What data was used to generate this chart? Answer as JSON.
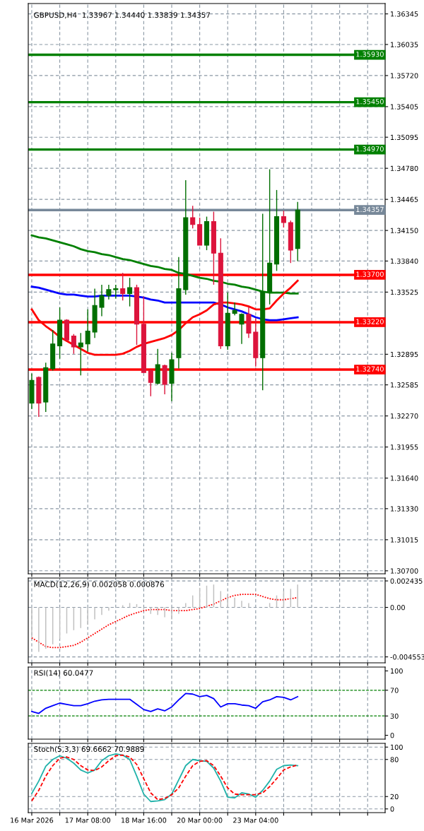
{
  "chart_data": [
    {
      "type": "candlestick",
      "title": "GBPUSD,H4  1.33967 1.34440 1.33839 1.34357",
      "categories": [
        null,
        null,
        null,
        null,
        null,
        null,
        null,
        null,
        null,
        null,
        null,
        null,
        null,
        null,
        null,
        null,
        null,
        null,
        null,
        null,
        null,
        null,
        null,
        null,
        null,
        null,
        null,
        null,
        null,
        null,
        null,
        null,
        null,
        null,
        null,
        null,
        null,
        null,
        null,
        null,
        null,
        null,
        null,
        null,
        null,
        null,
        null,
        null,
        null,
        null,
        null
      ],
      "ohlc": [
        [
          1.324,
          1.327,
          1.3234,
          1.3263
        ],
        [
          1.3266,
          1.3267,
          1.3226,
          1.324
        ],
        [
          1.3241,
          1.3281,
          1.3231,
          1.3276
        ],
        [
          1.3275,
          1.3314,
          1.3273,
          1.33
        ],
        [
          1.3298,
          1.3337,
          1.3285,
          1.3324
        ],
        [
          1.3324,
          1.3325,
          1.3303,
          1.3304
        ],
        [
          1.3308,
          1.331,
          1.329,
          1.3297
        ],
        [
          1.3297,
          1.3311,
          1.3268,
          1.3301
        ],
        [
          1.33,
          1.3335,
          1.3292,
          1.3313
        ],
        [
          1.3312,
          1.3356,
          1.3306,
          1.3339
        ],
        [
          1.3337,
          1.336,
          1.3328,
          1.3349
        ],
        [
          1.3349,
          1.336,
          1.3345,
          1.3355
        ],
        [
          1.3355,
          1.336,
          1.3346,
          1.3356
        ],
        [
          1.3356,
          1.3372,
          1.3344,
          1.3351
        ],
        [
          1.3351,
          1.3367,
          1.3338,
          1.3357
        ],
        [
          1.3357,
          1.336,
          1.3299,
          1.332
        ],
        [
          1.332,
          1.3348,
          1.3271,
          1.3271
        ],
        [
          1.3273,
          1.3274,
          1.3247,
          1.3261
        ],
        [
          1.326,
          1.3295,
          1.3259,
          1.3279
        ],
        [
          1.3278,
          1.3279,
          1.3249,
          1.3259
        ],
        [
          1.326,
          1.3291,
          1.3242,
          1.3284
        ],
        [
          1.3286,
          1.3388,
          1.3275,
          1.3356
        ],
        [
          1.3355,
          1.3466,
          1.335,
          1.3428
        ],
        [
          1.3428,
          1.344,
          1.3417,
          1.3421
        ],
        [
          1.3421,
          1.3428,
          1.34,
          1.34
        ],
        [
          1.34,
          1.3429,
          1.3395,
          1.3424
        ],
        [
          1.3424,
          1.3434,
          1.336,
          1.3392
        ],
        [
          1.3392,
          1.3407,
          1.3295,
          1.3298
        ],
        [
          1.3298,
          1.3352,
          1.3294,
          1.3331
        ],
        [
          1.3331,
          1.3342,
          1.3329,
          1.3334
        ],
        [
          1.332,
          1.3331,
          1.33,
          1.333
        ],
        [
          1.333,
          1.3338,
          1.3306,
          1.3311
        ],
        [
          1.3312,
          1.3326,
          1.3277,
          1.3286
        ],
        [
          1.3286,
          1.3432,
          1.3253,
          1.3353
        ],
        [
          1.3353,
          1.3477,
          1.334,
          1.3382
        ],
        [
          1.3381,
          1.3456,
          1.3374,
          1.3429
        ],
        [
          1.3429,
          1.3435,
          1.3418,
          1.3423
        ],
        [
          1.3423,
          1.3425,
          1.3382,
          1.3395
        ],
        [
          1.33967,
          1.3444,
          1.33839,
          1.34357
        ],
        null,
        null,
        null,
        null,
        null,
        null,
        null,
        null,
        null,
        null,
        null,
        null
      ],
      "colors": [
        "#006e00",
        "#dc143c",
        "#006e00",
        "#006e00",
        "#006e00",
        "#dc143c",
        "#dc143c",
        "#006e00",
        "#006e00",
        "#006e00",
        "#006e00",
        "#006e00",
        "#006e00",
        "#dc143c",
        "#006e00",
        "#dc143c",
        "#dc143c",
        "#dc143c",
        "#006e00",
        "#dc143c",
        "#006e00",
        "#006e00",
        "#006e00",
        "#dc143c",
        "#dc143c",
        "#006e00",
        "#dc143c",
        "#dc143c",
        "#006e00",
        "#006e00",
        "#006e00",
        "#dc143c",
        "#dc143c",
        "#006e00",
        "#006e00",
        "#006e00",
        "#dc143c",
        "#dc143c",
        "#006e00",
        null,
        null,
        null,
        null,
        null,
        null,
        null,
        null,
        null,
        null,
        null,
        null
      ],
      "series": [
        {
          "type": "line",
          "color": "#008000",
          "values": [
            1.341,
            1.3408,
            1.3407,
            1.3405,
            1.3403,
            1.3401,
            1.3399,
            1.3396,
            1.3394,
            1.3393,
            1.3391,
            1.339,
            1.3388,
            1.3386,
            1.3385,
            1.3383,
            1.3381,
            1.3379,
            1.3378,
            1.3376,
            1.3375,
            1.3372,
            1.3371,
            1.3369,
            1.3367,
            1.3366,
            1.3364,
            1.3363,
            1.3361,
            1.336,
            1.3358,
            1.3357,
            1.3355,
            1.3353,
            1.3352,
            1.3352,
            1.3352,
            1.3351,
            1.3351,
            null,
            null,
            null,
            null,
            null,
            null,
            null,
            null,
            null,
            null,
            null,
            null
          ]
        },
        {
          "type": "line",
          "color": "#0000ff",
          "values": [
            1.3358,
            1.3357,
            1.3355,
            1.3353,
            1.3351,
            1.335,
            1.335,
            1.3349,
            1.3348,
            1.3348,
            1.3349,
            1.3349,
            1.3349,
            1.3349,
            1.3349,
            1.3348,
            1.3347,
            1.3345,
            1.3344,
            1.3342,
            1.3342,
            1.3342,
            1.3342,
            1.3342,
            1.3342,
            1.3342,
            1.3342,
            1.334,
            1.3337,
            1.3335,
            1.3333,
            1.333,
            1.3327,
            1.3325,
            1.3324,
            1.3324,
            1.3325,
            1.3326,
            1.3327,
            null,
            null,
            null,
            null,
            null,
            null,
            null,
            null,
            null,
            null,
            null,
            null
          ]
        },
        {
          "type": "line",
          "color": "#ff0000",
          "values": [
            1.3335,
            1.3324,
            1.3318,
            1.3313,
            1.3307,
            1.3303,
            1.3299,
            1.3295,
            1.3291,
            1.3289,
            1.3289,
            1.3289,
            1.3289,
            1.329,
            1.3293,
            1.3297,
            1.33,
            1.3302,
            1.3304,
            1.3306,
            1.3309,
            1.3314,
            1.3321,
            1.3327,
            1.333,
            1.3334,
            1.334,
            1.3342,
            1.3342,
            1.3341,
            1.334,
            1.3338,
            1.3335,
            1.3335,
            1.3336,
            1.3344,
            1.3351,
            1.3357,
            1.3364,
            null,
            null,
            null,
            null,
            null,
            null,
            null,
            null,
            null,
            null,
            null,
            null
          ]
        }
      ],
      "ylim": [
        1.3067,
        1.3645
      ],
      "yticks": [
        1.36345,
        1.36035,
        {
          "value": 1.3572,
          "label": "1.35720"
        },
        1.35405,
        1.35095,
        {
          "value": 1.3478,
          "label": "1.34780"
        },
        1.34465,
        {
          "value": 1.3415,
          "label": "1.34150"
        },
        {
          "value": 1.3384,
          "label": "1.33840"
        },
        1.33525,
        1.32895,
        1.32585,
        {
          "value": 1.3227,
          "label": "1.32270"
        },
        1.31955,
        {
          "value": 1.3164,
          "label": "1.31640"
        },
        {
          "value": 1.3133,
          "label": "1.31330"
        },
        1.31015,
        {
          "value": 1.307,
          "label": "1.30700"
        }
      ],
      "ref_lines": [
        {
          "axis": "y",
          "value": 1.3593,
          "label": "1.35930",
          "color": "#008000"
        },
        {
          "axis": "y",
          "value": 1.3545,
          "label": "1.35450",
          "color": "#008000"
        },
        {
          "axis": "y",
          "value": 1.3497,
          "label": "1.34970",
          "color": "#008000"
        },
        {
          "axis": "y",
          "value": 1.34357,
          "label": "1.34357",
          "color": "#778899"
        },
        {
          "axis": "y",
          "value": 1.337,
          "label": "1.33700",
          "color": "#ff0000"
        },
        {
          "axis": "y",
          "value": 1.3322,
          "label": "1.33220",
          "color": "#ff0000"
        },
        {
          "axis": "y",
          "value": 1.3274,
          "label": "1.32740",
          "color": "#ff0000"
        }
      ],
      "grid": true,
      "tick_labels": "y"
    },
    {
      "type": "bar",
      "title": "MACD(12,26,9) 0.002058 0.000876",
      "categories": [
        null,
        null,
        null,
        null,
        null,
        null,
        null,
        null,
        null,
        null,
        null,
        null,
        null,
        null,
        null,
        null,
        null,
        null,
        null,
        null,
        null,
        null,
        null,
        null,
        null,
        null,
        null,
        null,
        null,
        null,
        null,
        null,
        null,
        null,
        null,
        null,
        null,
        null,
        null,
        null,
        null,
        null,
        null,
        null,
        null,
        null,
        null,
        null,
        null,
        null,
        null
      ],
      "series": [
        {
          "type": "bar",
          "color": "#c0c0c0",
          "values": [
            -0.0028,
            -0.0041,
            -0.0038,
            -0.0034,
            -0.0029,
            -0.0024,
            -0.0021,
            -0.0019,
            -0.0016,
            -0.0011,
            -0.0007,
            -0.0003,
            null,
            0.0002,
            0.0004,
            0.0003,
            -0.0002,
            -0.0006,
            -0.0007,
            -0.0009,
            -0.0011,
            -0.0006,
            0.0004,
            0.0011,
            0.0018,
            0.002,
            0.0021,
            0.0015,
            0.0011,
            0.0009,
            0.0006,
            0.0004,
            null,
            null,
            0.0004,
            0.0011,
            0.0015,
            0.0017,
            0.0021,
            null,
            null,
            null,
            null,
            null,
            null,
            null,
            null,
            null,
            null,
            null,
            null
          ]
        },
        {
          "type": "line",
          "color": "#ff0000",
          "line_style": "dotted",
          "values": [
            -0.0028,
            -0.0032,
            -0.0036,
            -0.0037,
            -0.0037,
            -0.0036,
            -0.0035,
            -0.0032,
            -0.0028,
            -0.0024,
            -0.002,
            -0.0016,
            -0.0013,
            -0.001,
            -0.0007,
            -0.0005,
            -0.0003,
            -0.0002,
            -0.0002,
            -0.0002,
            -0.0003,
            -0.0003,
            -0.0003,
            -0.0002,
            -0.0001,
            0.0001,
            0.0003,
            0.0006,
            0.0009,
            0.0011,
            0.0012,
            0.0012,
            0.0012,
            0.001,
            0.0008,
            0.0007,
            0.0007,
            0.0008,
            0.0009,
            null,
            null,
            null,
            null,
            null,
            null,
            null,
            null,
            null,
            null,
            null,
            null
          ]
        }
      ],
      "ylim": [
        -0.0051,
        0.0027
      ],
      "yticks": [
        0.002435,
        {
          "value": 0,
          "label": "0.00"
        },
        -0.004553
      ],
      "grid": true,
      "tick_labels": "y"
    },
    {
      "type": "line",
      "title": "RSI(14) 60.0477",
      "categories": [
        null,
        null,
        null,
        null,
        null,
        null,
        null,
        null,
        null,
        null,
        null,
        null,
        null,
        null,
        null,
        null,
        null,
        null,
        null,
        null,
        null,
        null,
        null,
        null,
        null,
        null,
        null,
        null,
        null,
        null,
        null,
        null,
        null,
        null,
        null,
        null,
        null,
        null,
        null,
        null,
        null,
        null,
        null,
        null,
        null,
        null,
        null,
        null,
        null,
        null,
        null
      ],
      "series": [
        {
          "color": "#0000ff",
          "values": [
            37,
            34,
            42,
            46,
            50,
            48,
            46,
            46,
            49,
            53,
            55,
            56,
            56,
            56,
            56,
            48,
            40,
            37,
            41,
            38,
            44,
            55,
            65,
            64,
            60,
            62,
            57,
            44,
            49,
            49,
            47,
            46,
            42,
            52,
            55,
            60,
            59,
            55,
            60,
            null,
            null,
            null,
            null,
            null,
            null,
            null,
            null,
            null,
            null,
            null,
            null
          ]
        }
      ],
      "ylim": [
        -6,
        106
      ],
      "yticks": [
        100,
        70,
        30,
        0
      ],
      "ref_lines": [
        {
          "axis": "y",
          "value": 70,
          "color": "#008000",
          "line_style": "dashed"
        },
        {
          "axis": "y",
          "value": 30,
          "color": "#008000",
          "line_style": "dashed"
        }
      ],
      "grid": "x",
      "tick_labels": "y"
    },
    {
      "type": "line",
      "title": "Stoch(5,3,3) 69.6662 70.9889",
      "categories": [
        "16 Mar 2026",
        null,
        null,
        null,
        null,
        null,
        null,
        null,
        "17 Mar 08:00",
        null,
        null,
        null,
        null,
        null,
        null,
        null,
        "18 Mar 16:00",
        null,
        null,
        null,
        null,
        null,
        null,
        null,
        "20 Mar 00:00",
        null,
        null,
        null,
        null,
        null,
        null,
        null,
        "23 Mar 04:00",
        null,
        null,
        null,
        null,
        null,
        null,
        null,
        null,
        null,
        null,
        null,
        null,
        null,
        null,
        null,
        null,
        null,
        null
      ],
      "series": [
        {
          "color": "#20b2aa",
          "values": [
            25,
            45,
            69,
            80,
            86,
            82,
            74,
            63,
            58,
            63,
            78,
            86,
            89,
            87,
            80,
            53,
            24,
            12,
            13,
            15,
            24,
            47,
            70,
            80,
            78,
            77,
            66,
            45,
            19,
            18,
            26,
            24,
            19,
            30,
            45,
            64,
            70,
            71,
            70,
            null,
            null,
            null,
            null,
            null,
            null,
            null,
            null,
            null,
            null,
            null,
            null
          ]
        },
        {
          "color": "#ff0000",
          "line_style": "dashed",
          "values": [
            13,
            30,
            53,
            70,
            82,
            84,
            80,
            70,
            63,
            62,
            68,
            78,
            86,
            87,
            84,
            72,
            49,
            26,
            15,
            17,
            23,
            34,
            53,
            70,
            77,
            78,
            70,
            53,
            34,
            24,
            23,
            23,
            23,
            26,
            36,
            49,
            63,
            68,
            71,
            null,
            null,
            null,
            null,
            null,
            null,
            null,
            null,
            null,
            null,
            null,
            null
          ]
        }
      ],
      "ylim": [
        -6,
        106
      ],
      "yticks": [
        100,
        80,
        20,
        0
      ],
      "grid": true
    }
  ]
}
